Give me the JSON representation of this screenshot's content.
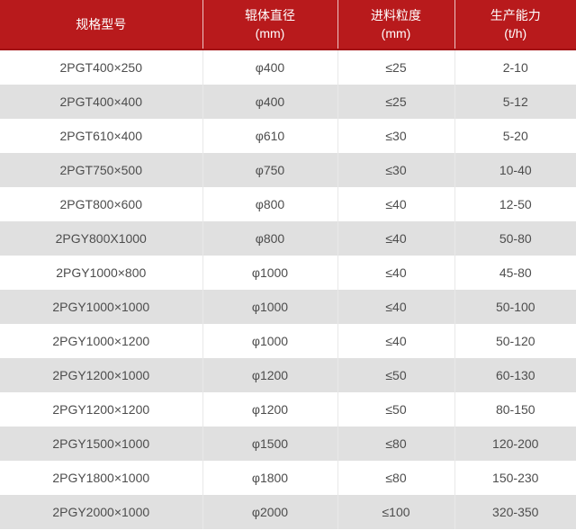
{
  "colors": {
    "header_bg": "#b81a1c",
    "header_bg_dark": "#a31114",
    "row_alt_bg": "#e0e0e0",
    "row_bg": "#ffffff",
    "divider": "#e8e8e8",
    "text": "#4d4d4d",
    "header_text": "#ffffff"
  },
  "table": {
    "column_keys": [
      "model",
      "roller-diameter",
      "feed-size",
      "capacity"
    ],
    "headers": [
      {
        "label": "规格型号",
        "unit": ""
      },
      {
        "label": "辊体直径",
        "unit": "(mm)"
      },
      {
        "label": "进料粒度",
        "unit": "(mm)"
      },
      {
        "label": "生产能力",
        "unit": "(t/h)"
      }
    ],
    "rows": [
      [
        "2PGT400×250",
        "φ400",
        "≤25",
        "2-10"
      ],
      [
        "2PGT400×400",
        "φ400",
        "≤25",
        "5-12"
      ],
      [
        "2PGT610×400",
        "φ610",
        "≤30",
        "5-20"
      ],
      [
        "2PGT750×500",
        "φ750",
        "≤30",
        "10-40"
      ],
      [
        "2PGT800×600",
        "φ800",
        "≤40",
        "12-50"
      ],
      [
        "2PGY800X1000",
        "φ800",
        "≤40",
        "50-80"
      ],
      [
        "2PGY1000×800",
        "φ1000",
        "≤40",
        "45-80"
      ],
      [
        "2PGY1000×1000",
        "φ1000",
        "≤40",
        "50-100"
      ],
      [
        "2PGY1000×1200",
        "φ1000",
        "≤40",
        "50-120"
      ],
      [
        "2PGY1200×1000",
        "φ1200",
        "≤50",
        "60-130"
      ],
      [
        "2PGY1200×1200",
        "φ1200",
        "≤50",
        "80-150"
      ],
      [
        "2PGY1500×1000",
        "φ1500",
        "≤80",
        "120-200"
      ],
      [
        "2PGY1800×1000",
        "φ1800",
        "≤80",
        "150-230"
      ],
      [
        "2PGY2000×1000",
        "φ2000",
        "≤100",
        "320-350"
      ]
    ]
  },
  "chart_data": {
    "type": "table",
    "title": "",
    "columns": [
      "规格型号",
      "辊体直径 (mm)",
      "进料粒度 (mm)",
      "生产能力 (t/h)"
    ],
    "rows": [
      [
        "2PGT400×250",
        "φ400",
        "≤25",
        "2-10"
      ],
      [
        "2PGT400×400",
        "φ400",
        "≤25",
        "5-12"
      ],
      [
        "2PGT610×400",
        "φ610",
        "≤30",
        "5-20"
      ],
      [
        "2PGT750×500",
        "φ750",
        "≤30",
        "10-40"
      ],
      [
        "2PGT800×600",
        "φ800",
        "≤40",
        "12-50"
      ],
      [
        "2PGY800X1000",
        "φ800",
        "≤40",
        "50-80"
      ],
      [
        "2PGY1000×800",
        "φ1000",
        "≤40",
        "45-80"
      ],
      [
        "2PGY1000×1000",
        "φ1000",
        "≤40",
        "50-100"
      ],
      [
        "2PGY1000×1200",
        "φ1000",
        "≤40",
        "50-120"
      ],
      [
        "2PGY1200×1000",
        "φ1200",
        "≤50",
        "60-130"
      ],
      [
        "2PGY1200×1200",
        "φ1200",
        "≤50",
        "80-150"
      ],
      [
        "2PGY1500×1000",
        "φ1500",
        "≤80",
        "120-200"
      ],
      [
        "2PGY1800×1000",
        "φ1800",
        "≤80",
        "150-230"
      ],
      [
        "2PGY2000×1000",
        "φ2000",
        "≤100",
        "320-350"
      ]
    ]
  }
}
